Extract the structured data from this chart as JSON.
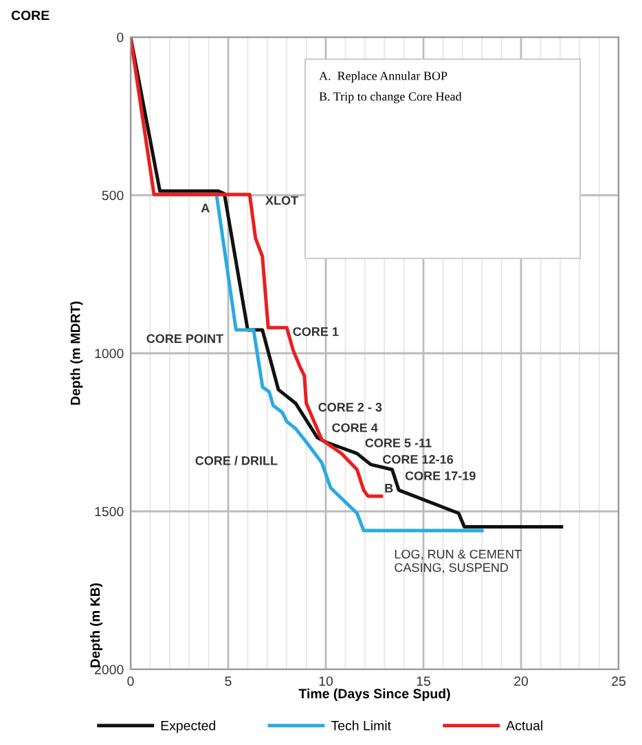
{
  "chart_data": {
    "type": "line",
    "title": "CORE",
    "xlabel": "Time (Days Since Spud)",
    "ylabel": "Depth (m MDRT)",
    "xlim": [
      0,
      25
    ],
    "xticks": [
      0,
      5,
      10,
      15,
      20,
      25
    ],
    "ylim": [
      2000,
      0
    ],
    "yticks": [
      0,
      500,
      1000,
      1500,
      2000
    ],
    "grid": true,
    "legend": "bottom",
    "marker": "none",
    "line_style": "solid",
    "series": [
      {
        "name": "Expected",
        "color": "#111111",
        "x": [
          0,
          1.5,
          4.5,
          4.8,
          6.0,
          6.75,
          7.57,
          8.45,
          9.57,
          10.0,
          11.6,
          12.3,
          13.4,
          13.74,
          16.8,
          17.1,
          22.07
        ],
        "values": [
          0,
          487,
          487,
          495,
          926,
          926,
          1115,
          1158,
          1267,
          1281,
          1317,
          1352,
          1368,
          1433,
          1506,
          1549,
          1549
        ]
      },
      {
        "name": "Tech Limit",
        "color": "#29abe2",
        "x": [
          4.4,
          5.4,
          6.3,
          6.76,
          7.1,
          7.3,
          7.77,
          8.0,
          8.45,
          9.0,
          9.8,
          10.25,
          11.6,
          11.94,
          18.0
        ],
        "values": [
          498,
          926,
          926,
          1107,
          1122,
          1165,
          1187,
          1216,
          1238,
          1281,
          1347,
          1426,
          1506,
          1561,
          1561
        ]
      },
      {
        "name": "Actual",
        "color": "#e8201f",
        "x": [
          0,
          1.2,
          6.1,
          6.4,
          6.75,
          7.05,
          8.0,
          8.33,
          8.67,
          8.9,
          9.0,
          9.8,
          10.8,
          11.6,
          11.94,
          12.16,
          12.84
        ],
        "values": [
          0,
          498,
          498,
          636,
          694,
          919,
          919,
          991,
          1042,
          1071,
          1158,
          1274,
          1317,
          1368,
          1433,
          1452,
          1452
        ]
      }
    ],
    "annotations": [
      {
        "text": "CORE 1",
        "x": 8.3,
        "y": 935
      },
      {
        "text": "CORE 12-16",
        "x": 12.9,
        "y": 1339
      },
      {
        "text": "B",
        "x": 13.0,
        "y": 1430
      },
      "A",
      "XLOT",
      "CORE POINT",
      "CORE 2 - 3",
      "CORE 4",
      "CORE 5 -11",
      "CORE 17-19",
      "CORE / DRILL",
      "LOG, RUN & CEMENT\nCASING, SUSPEND",
      "A.  Replace Annular BOP",
      "B. Trip to change Core Head",
      "Depth (m KB)"
    ]
  }
}
